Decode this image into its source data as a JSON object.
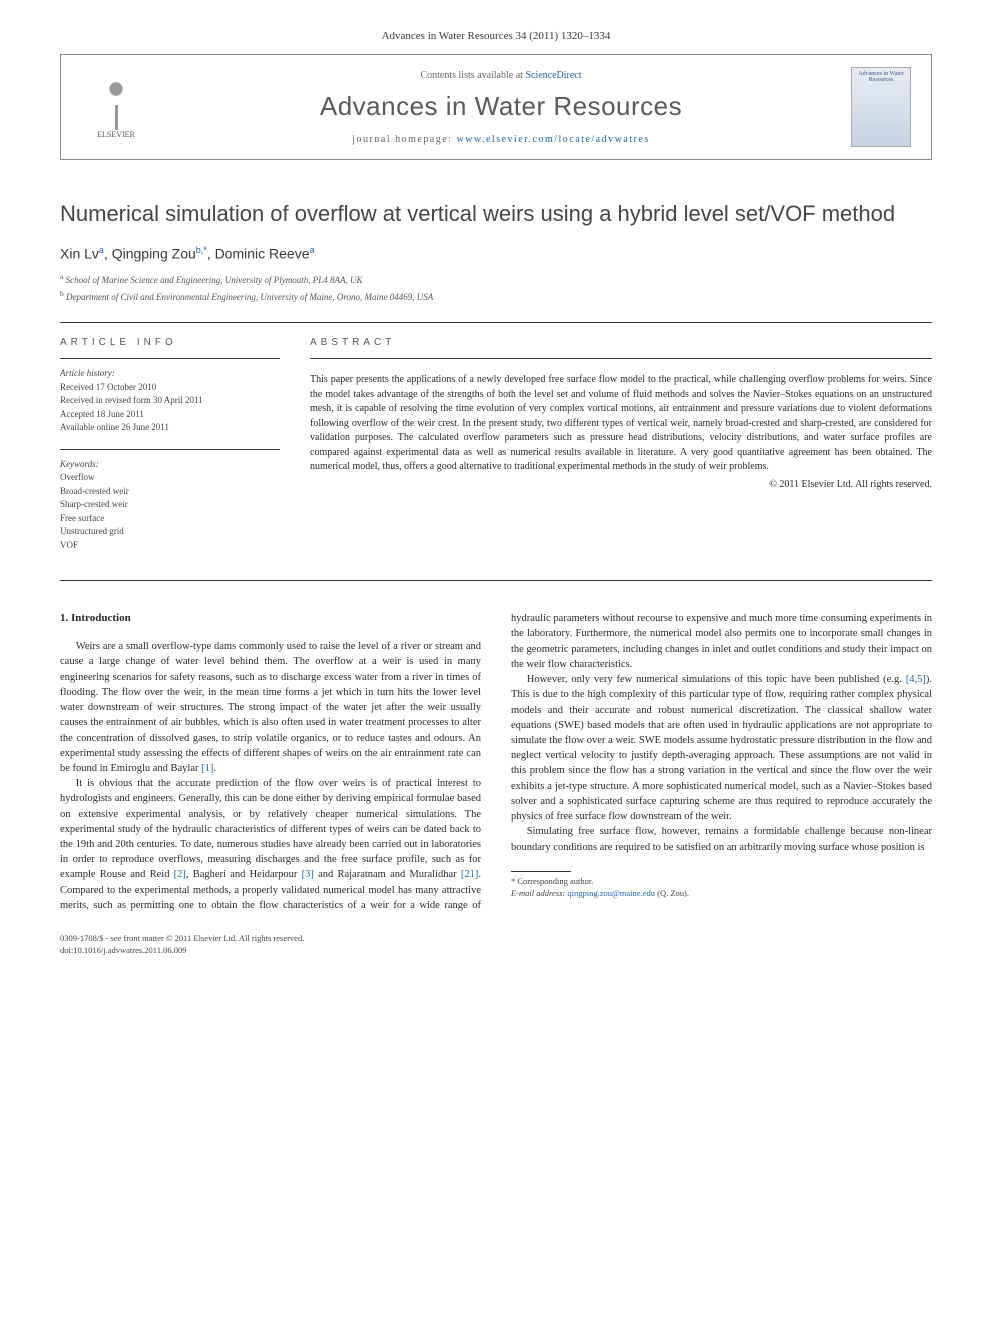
{
  "journal_ref": "Advances in Water Resources 34 (2011) 1320–1334",
  "header": {
    "contents_prefix": "Contents lists available at ",
    "contents_link": "ScienceDirect",
    "journal_title": "Advances in Water Resources",
    "homepage_prefix": "journal homepage: ",
    "homepage_url": "www.elsevier.com/locate/advwatres",
    "publisher": "ELSEVIER",
    "cover_text": "Advances in Water Resources"
  },
  "title": "Numerical simulation of overflow at vertical weirs using a hybrid level set/VOF method",
  "authors_html": "Xin Lv<sup>a</sup>, Qingping Zou<sup>b,*</sup>, Dominic Reeve<sup>a</sup>",
  "affiliations": [
    {
      "sup": "a",
      "text": "School of Marine Science and Engineering, University of Plymouth, PL4 8AA, UK"
    },
    {
      "sup": "b",
      "text": "Department of Civil and Environmental Engineering, University of Maine, Orono, Maine 04469, USA"
    }
  ],
  "info": {
    "label": "ARTICLE INFO",
    "history_hdr": "Article history:",
    "history": [
      "Received 17 October 2010",
      "Received in revised form 30 April 2011",
      "Accepted 18 June 2011",
      "Available online 26 June 2011"
    ],
    "keywords_hdr": "Keywords:",
    "keywords": [
      "Overflow",
      "Broad-crested weir",
      "Sharp-crested weir",
      "Free surface",
      "Unstructured grid",
      "VOF"
    ]
  },
  "abstract": {
    "label": "ABSTRACT",
    "text": "This paper presents the applications of a newly developed free surface flow model to the practical, while challenging overflow problems for weirs. Since the model takes advantage of the strengths of both the level set and volume of fluid methods and solves the Navier–Stokes equations on an unstructured mesh, it is capable of resolving the time evolution of very complex vortical motions, air entrainment and pressure variations due to violent deformations following overflow of the weir crest. In the present study, two different types of vertical weir, namely broad-crested and sharp-crested, are considered for validation purposes. The calculated overflow parameters such as pressure head distributions, velocity distributions, and water surface profiles are compared against experimental data as well as numerical results available in literature. A very good quantitative agreement has been obtained. The numerical model, thus, offers a good alternative to traditional experimental methods in the study of weir problems.",
    "copyright": "© 2011 Elsevier Ltd. All rights reserved."
  },
  "body": {
    "section_title": "1. Introduction",
    "paragraphs": [
      "Weirs are a small overflow-type dams commonly used to raise the level of a river or stream and cause a large change of water level behind them. The overflow at a weir is used in many engineering scenarios for safety reasons, such as to discharge excess water from a river in times of flooding. The flow over the weir, in the mean time forms a jet which in turn hits the lower level water downstream of weir structures. The strong impact of the water jet after the weir usually causes the entrainment of air bubbles, which is also often used in water treatment processes to alter the concentration of dissolved gases, to strip volatile organics, or to reduce tastes and odours. An experimental study assessing the effects of different shapes of weirs on the air entrainment rate can be found in Emiroglu and Baylar <span class=\"cite\">[1]</span>.",
      "It is obvious that the accurate prediction of the flow over weirs is of practical interest to hydrologists and engineers. Generally, this can be done either by deriving empirical formulae based on extensive experimental analysis, or by relatively cheaper numerical simulations. The experimental study of the hydraulic characteristics of different types of weirs can be dated back to the 19th and 20th centuries. To date, numerous studies have already been carried out in laboratories in order to reproduce overflows, measuring discharges and the free surface profile, such as for example Rouse and Reid <span class=\"cite\">[2]</span>, Bagheri and Heidarpour <span class=\"cite\">[3]</span> and Rajaratnam and Muralidhar <span class=\"cite\">[21]</span>. Compared to the experimental methods, a properly validated numerical model has many attractive merits, such as permitting one to obtain the flow characteristics of a weir for a wide range of hydraulic parameters without recourse to expensive and much more time consuming experiments in the laboratory. Furthermore, the numerical model also permits one to incorporate small changes in the geometric parameters, including changes in inlet and outlet conditions and study their impact on the weir flow characteristics.",
      "However, only very few numerical simulations of this topic have been published (e.g. <span class=\"cite\">[4,5]</span>). This is due to the high complexity of this particular type of flow, requiring rather complex physical models and their accurate and robust numerical discretization. The classical shallow water equations (SWE) based models that are often used in hydraulic applications are not appropriate to simulate the flow over a weir. SWE models assume hydrostatic pressure distribution in the flow and neglect vertical velocity to justify depth-averaging approach. These assumptions are not valid in this problem since the flow has a strong variation in the vertical and since the flow over the weir exhibits a jet-type structure. A more sophisticated numerical model, such as a Navier–Stokes based solver and a sophisticated surface capturing scheme are thus required to reproduce accurately the physics of free surface flow downstream of the weir.",
      "Simulating free surface flow, however, remains a formidable challenge because non-linear boundary conditions are required to be satisfied on an arbitrarily moving surface whose position is"
    ]
  },
  "footnote": {
    "corr": "* Corresponding author.",
    "email_label": "E-mail address:",
    "email": "qingping.zou@maine.edu",
    "email_who": "(Q. Zou)."
  },
  "footer": {
    "issn_line": "0309-1708/$ - see front matter © 2011 Elsevier Ltd. All rights reserved.",
    "doi_line": "doi:10.1016/j.advwatres.2011.06.009"
  }
}
